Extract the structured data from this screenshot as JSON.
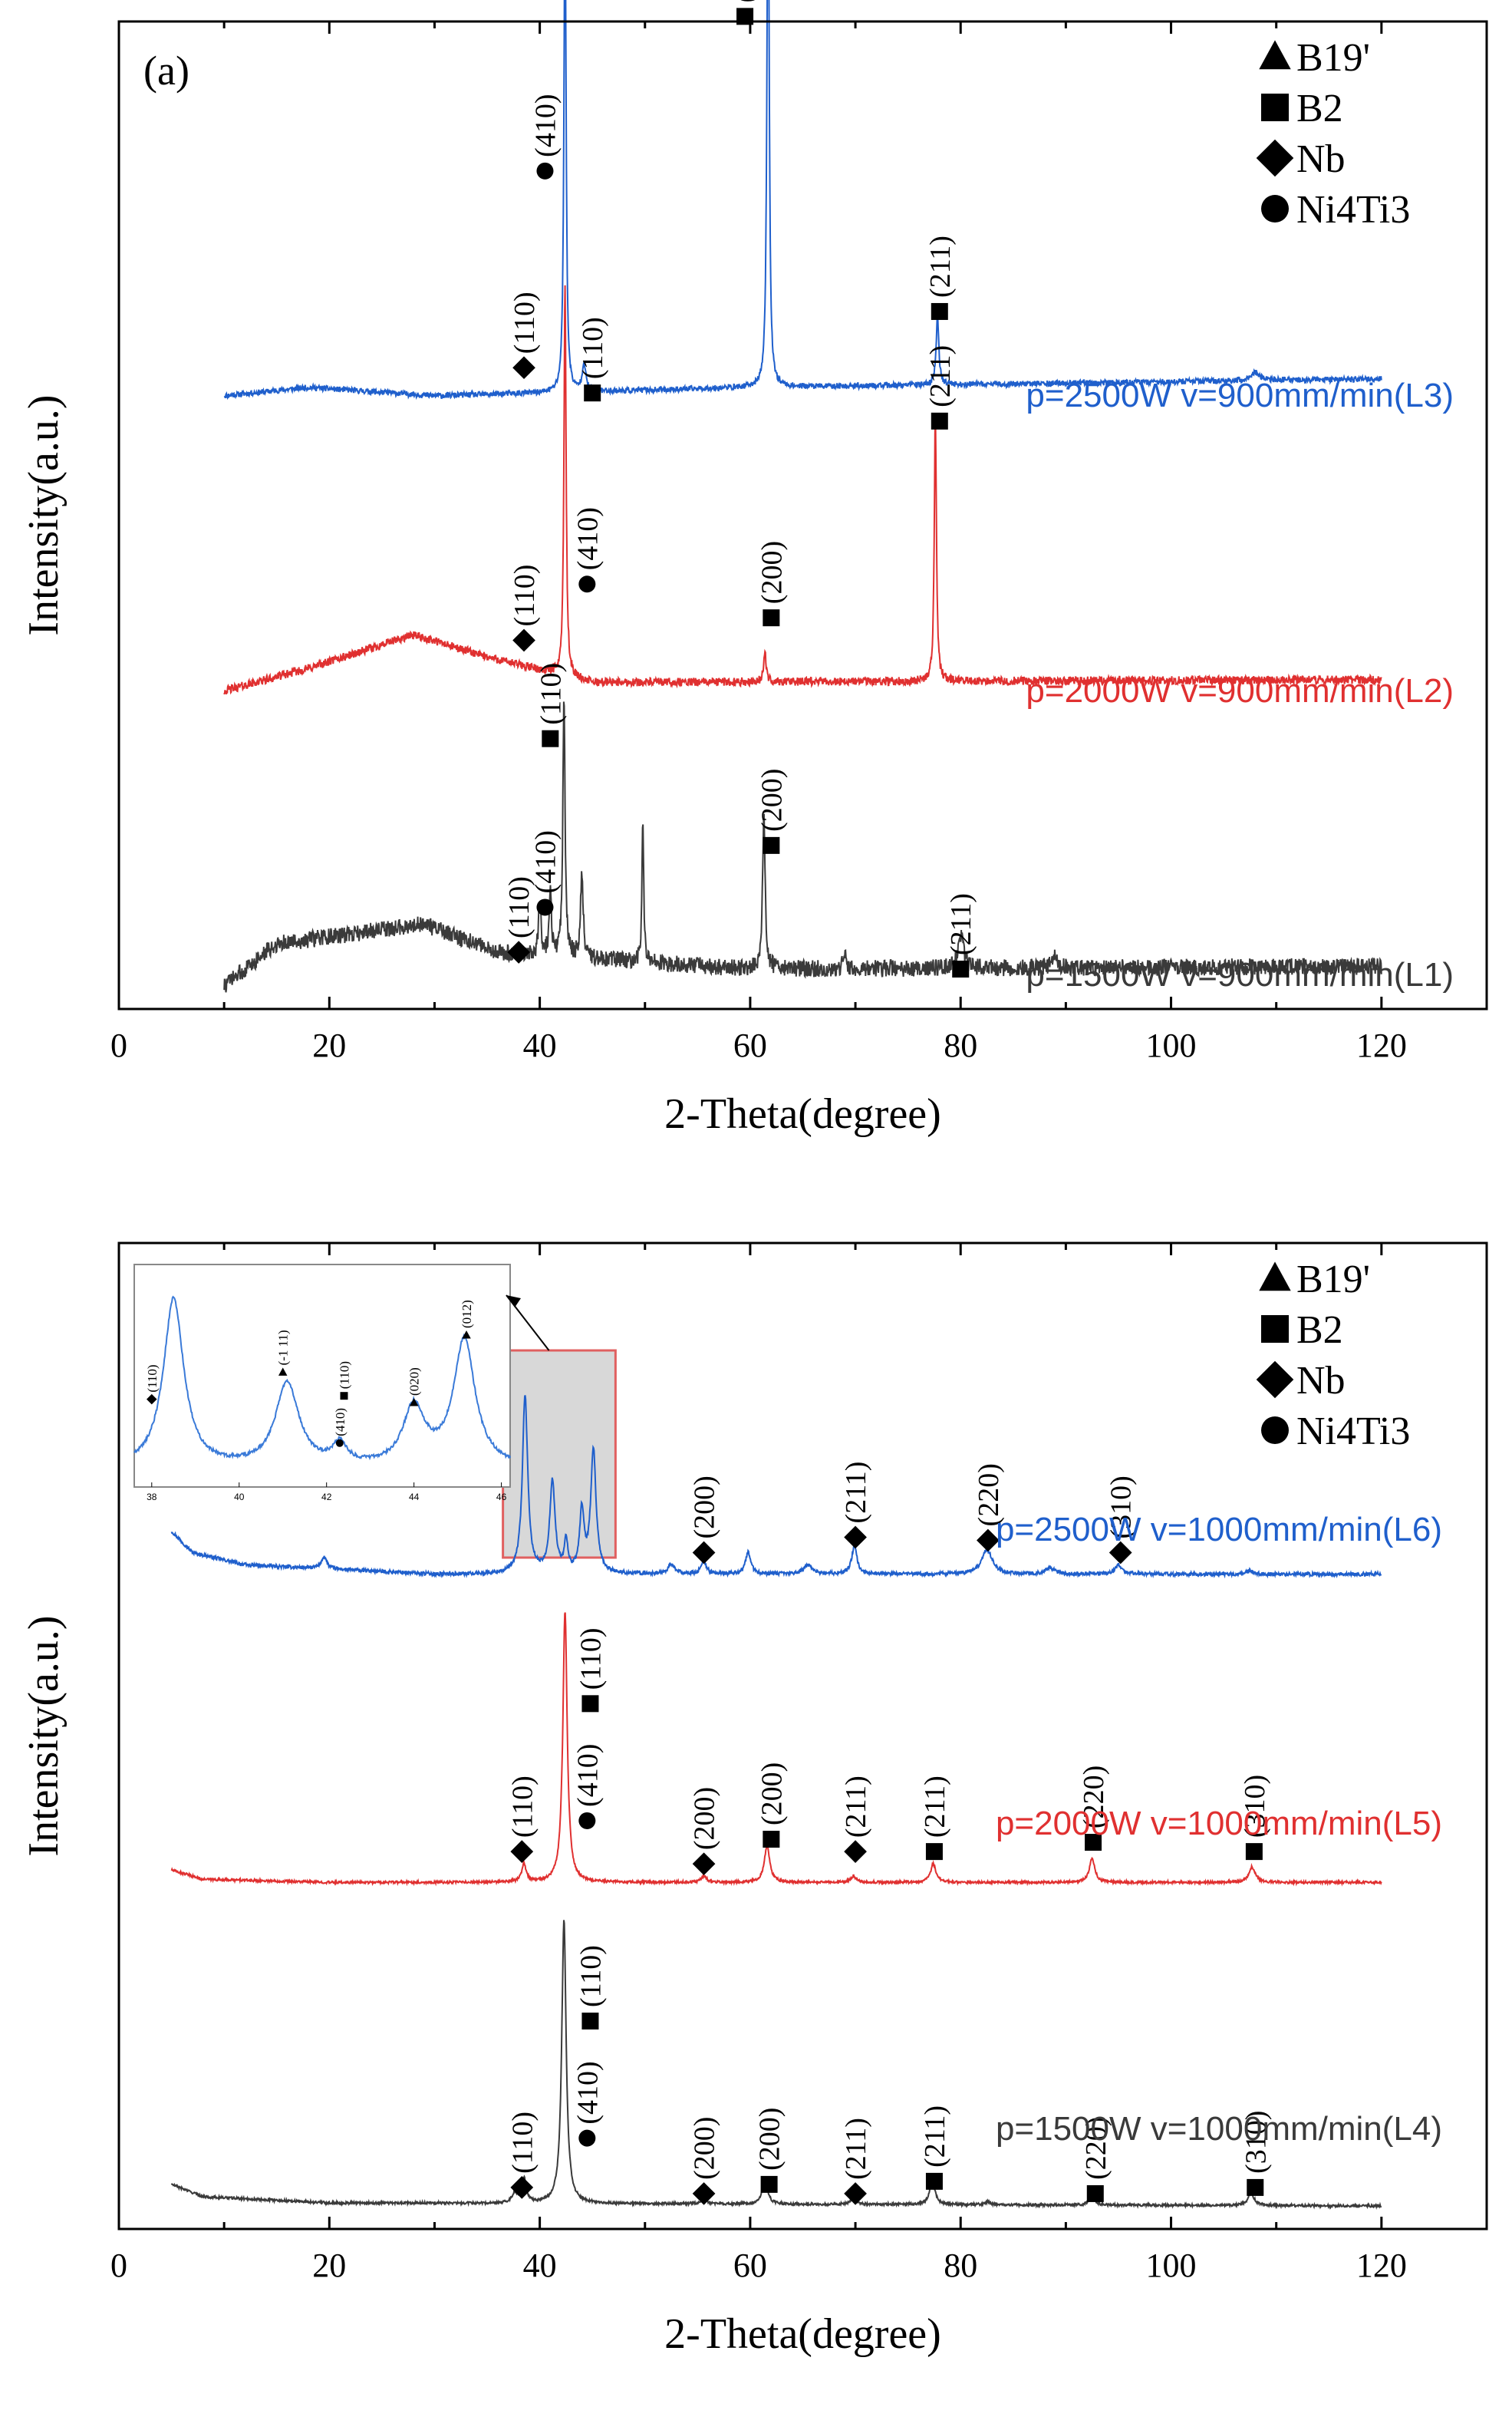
{
  "chart_data": [
    {
      "type": "line",
      "panel_label": "(a)",
      "xlabel": "2-Theta(degree)",
      "ylabel": "Intensity(a.u.)",
      "xlim": [
        0,
        130
      ],
      "xticks": [
        0,
        20,
        40,
        60,
        80,
        100,
        120
      ],
      "grid": false,
      "legend": {
        "placement": "top-right",
        "entries": [
          {
            "marker": "triangle",
            "label": "B19'"
          },
          {
            "marker": "square",
            "label": "B2"
          },
          {
            "marker": "diamond",
            "label": "Nb"
          },
          {
            "marker": "circle",
            "label": "Ni4Ti3"
          }
        ]
      },
      "series": [
        {
          "name": "p=2500W  v=900mm/min(L3)",
          "color": "#1f5fcc",
          "offset": 2.1,
          "x_range": [
            10,
            120
          ],
          "baseline": [
            [
              10,
              0
            ],
            [
              18,
              0.03
            ],
            [
              30,
              0.0
            ],
            [
              60,
              0.03
            ],
            [
              120,
              0.06
            ]
          ],
          "noise": 0.01,
          "peaks": [
            [
              42.4,
              1.8,
              0.12
            ],
            [
              44.2,
              0.1,
              0.2
            ],
            [
              61.7,
              2.1,
              0.12
            ],
            [
              77.8,
              0.25,
              0.15
            ],
            [
              108,
              0.03,
              0.5
            ]
          ],
          "annotations": [
            {
              "x": 38.5,
              "y": 0.1,
              "marker": "diamond",
              "label": "(110)"
            },
            {
              "x": 40.5,
              "y": 0.8,
              "marker": "circle",
              "label": "(410)"
            },
            {
              "x": 41.0,
              "y": 1.5,
              "marker": "square",
              "label": "(110)"
            },
            {
              "x": 59.5,
              "y": 1.35,
              "marker": "square",
              "label": "(200)"
            },
            {
              "x": 78.0,
              "y": 0.3,
              "marker": "square",
              "label": "(211)"
            }
          ]
        },
        {
          "name": "p=2000W  v=900mm/min(L2)",
          "color": "#e03030",
          "offset": 1.05,
          "x_range": [
            10,
            120
          ],
          "baseline": [
            [
              10,
              0
            ],
            [
              18,
              0.08
            ],
            [
              28,
              0.2
            ],
            [
              35,
              0.12
            ],
            [
              45,
              0.03
            ],
            [
              120,
              0.04
            ]
          ],
          "noise": 0.015,
          "peaks": [
            [
              42.4,
              1.4,
              0.12
            ],
            [
              61.4,
              0.1,
              0.15
            ],
            [
              77.6,
              0.95,
              0.12
            ]
          ],
          "annotations": [
            {
              "x": 38.5,
              "y": 0.18,
              "marker": "diamond",
              "label": "(110)"
            },
            {
              "x": 44.5,
              "y": 0.38,
              "marker": "circle",
              "label": "(410)"
            },
            {
              "x": 45.0,
              "y": 1.06,
              "marker": "square",
              "label": "(110)"
            },
            {
              "x": 62.0,
              "y": 0.26,
              "marker": "square",
              "label": "(200)"
            },
            {
              "x": 78.0,
              "y": 0.96,
              "marker": "square",
              "label": "(211)"
            }
          ]
        },
        {
          "name": "p=1500W  v=900mm/min(L1)",
          "color": "#3a3a3a",
          "offset": 0.0,
          "x_range": [
            10,
            120
          ],
          "baseline": [
            [
              10,
              0
            ],
            [
              15,
              0.15
            ],
            [
              29,
              0.22
            ],
            [
              36,
              0.12
            ],
            [
              60,
              0.06
            ],
            [
              120,
              0.07
            ]
          ],
          "noise": 0.03,
          "peaks": [
            [
              40.0,
              0.18,
              0.15
            ],
            [
              41.0,
              0.25,
              0.12
            ],
            [
              42.3,
              0.95,
              0.12
            ],
            [
              44.0,
              0.3,
              0.15
            ],
            [
              49.8,
              0.5,
              0.1
            ],
            [
              61.3,
              0.55,
              0.15
            ],
            [
              69.0,
              0.05,
              0.2
            ],
            [
              80.0,
              0.12,
              0.3
            ],
            [
              89.0,
              0.04,
              0.3
            ]
          ],
          "annotations": [
            {
              "x": 38.0,
              "y": 0.12,
              "marker": "diamond",
              "label": "(110)"
            },
            {
              "x": 40.5,
              "y": 0.28,
              "marker": "circle",
              "label": "(410)"
            },
            {
              "x": 41.0,
              "y": 0.88,
              "marker": "square",
              "label": "(110)"
            },
            {
              "x": 62.0,
              "y": 0.5,
              "marker": "square",
              "label": "(200)"
            },
            {
              "x": 80.0,
              "y": 0.06,
              "marker": "square",
              "label": "(211)"
            }
          ]
        }
      ]
    },
    {
      "type": "line",
      "panel_label": "(b)",
      "xlabel": "2-Theta(degree)",
      "ylabel": "Intensity(a.u.)",
      "xlim": [
        0,
        130
      ],
      "xticks": [
        0,
        20,
        40,
        60,
        80,
        100,
        120
      ],
      "grid": false,
      "legend": {
        "placement": "top-right",
        "entries": [
          {
            "marker": "triangle",
            "label": "B19'"
          },
          {
            "marker": "square",
            "label": "B2"
          },
          {
            "marker": "diamond",
            "label": "Nb"
          },
          {
            "marker": "circle",
            "label": "Ni4Ti3"
          }
        ]
      },
      "series": [
        {
          "name": "p=2500W  v=1000mm/min(L6)",
          "color": "#1f5fcc",
          "offset": 2.05,
          "x_range": [
            5,
            120
          ],
          "baseline": [
            [
              5,
              0.14
            ],
            [
              7,
              0.07
            ],
            [
              12,
              0.03
            ],
            [
              30,
              0.0
            ],
            [
              120,
              0.0
            ]
          ],
          "noise": 0.006,
          "peaks": [
            [
              19.5,
              0.04,
              0.3
            ],
            [
              38.6,
              0.58,
              0.3
            ],
            [
              41.2,
              0.3,
              0.3
            ],
            [
              42.5,
              0.1,
              0.2
            ],
            [
              44.0,
              0.2,
              0.25
            ],
            [
              45.1,
              0.4,
              0.3
            ],
            [
              52.5,
              0.03,
              0.4
            ],
            [
              55.6,
              0.04,
              0.3
            ],
            [
              59.8,
              0.07,
              0.3
            ],
            [
              65.5,
              0.03,
              0.5
            ],
            [
              69.9,
              0.09,
              0.3
            ],
            [
              82.5,
              0.08,
              0.6
            ],
            [
              88.5,
              0.02,
              0.5
            ],
            [
              95.0,
              0.03,
              0.4
            ],
            [
              107.5,
              0.01,
              0.4
            ]
          ],
          "annotations": [
            {
              "x": 55.6,
              "y": 0.07,
              "marker": "diamond",
              "label": "(200)"
            },
            {
              "x": 70.0,
              "y": 0.12,
              "marker": "diamond",
              "label": "(211)"
            },
            {
              "x": 82.6,
              "y": 0.11,
              "marker": "diamond",
              "label": "(220)"
            },
            {
              "x": 95.2,
              "y": 0.07,
              "marker": "diamond",
              "label": "(310)"
            }
          ]
        },
        {
          "name": "p=2000W  v=1000mm/min(L5)",
          "color": "#e03030",
          "offset": 1.05,
          "x_range": [
            5,
            120
          ],
          "baseline": [
            [
              5,
              0.04
            ],
            [
              8,
              0.01
            ],
            [
              20,
              0.0
            ],
            [
              120,
              0.0
            ]
          ],
          "noise": 0.004,
          "peaks": [
            [
              38.5,
              0.06,
              0.25
            ],
            [
              42.4,
              0.88,
              0.25
            ],
            [
              55.6,
              0.02,
              0.3
            ],
            [
              61.6,
              0.12,
              0.3
            ],
            [
              69.8,
              0.02,
              0.3
            ],
            [
              77.4,
              0.06,
              0.3
            ],
            [
              92.5,
              0.08,
              0.3
            ],
            [
              107.7,
              0.05,
              0.35
            ]
          ],
          "annotations": [
            {
              "x": 38.3,
              "y": 0.1,
              "marker": "diamond",
              "label": "(110)"
            },
            {
              "x": 44.5,
              "y": 0.2,
              "marker": "circle",
              "label": "(410)"
            },
            {
              "x": 44.8,
              "y": 0.58,
              "marker": "square",
              "label": "(110)"
            },
            {
              "x": 55.6,
              "y": 0.06,
              "marker": "diamond",
              "label": "(200)"
            },
            {
              "x": 62.0,
              "y": 0.14,
              "marker": "square",
              "label": "(200)"
            },
            {
              "x": 70.0,
              "y": 0.1,
              "marker": "diamond",
              "label": "(211)"
            },
            {
              "x": 77.5,
              "y": 0.1,
              "marker": "square",
              "label": "(211)"
            },
            {
              "x": 92.6,
              "y": 0.13,
              "marker": "square",
              "label": "(220)"
            },
            {
              "x": 107.9,
              "y": 0.1,
              "marker": "square",
              "label": "(310)"
            }
          ]
        },
        {
          "name": "p=1500W  v=1000mm/min(L4)",
          "color": "#3a3a3a",
          "offset": 0.0,
          "x_range": [
            5,
            120
          ],
          "baseline": [
            [
              5,
              0.07
            ],
            [
              8,
              0.03
            ],
            [
              20,
              0.01
            ],
            [
              120,
              0.0
            ]
          ],
          "noise": 0.004,
          "peaks": [
            [
              37.6,
              0.03,
              0.3
            ],
            [
              38.5,
              0.08,
              0.25
            ],
            [
              42.3,
              0.92,
              0.25
            ],
            [
              55.6,
              0.02,
              0.3
            ],
            [
              61.4,
              0.08,
              0.3
            ],
            [
              69.8,
              0.02,
              0.3
            ],
            [
              77.3,
              0.08,
              0.3
            ],
            [
              82.6,
              0.01,
              0.3
            ],
            [
              92.5,
              0.03,
              0.3
            ],
            [
              107.6,
              0.04,
              0.35
            ]
          ],
          "annotations": [
            {
              "x": 38.3,
              "y": 0.06,
              "marker": "diamond",
              "label": "(110)"
            },
            {
              "x": 44.5,
              "y": 0.22,
              "marker": "circle",
              "label": "(410)"
            },
            {
              "x": 44.8,
              "y": 0.6,
              "marker": "square",
              "label": "(110)"
            },
            {
              "x": 55.6,
              "y": 0.04,
              "marker": "diamond",
              "label": "(200)"
            },
            {
              "x": 61.8,
              "y": 0.07,
              "marker": "square",
              "label": "(200)"
            },
            {
              "x": 70.0,
              "y": 0.04,
              "marker": "diamond",
              "label": "(211)"
            },
            {
              "x": 77.5,
              "y": 0.08,
              "marker": "square",
              "label": "(211)"
            },
            {
              "x": 92.8,
              "y": 0.04,
              "marker": "square",
              "label": "(220)"
            },
            {
              "x": 108.0,
              "y": 0.06,
              "marker": "square",
              "label": "(310)"
            }
          ]
        }
      ],
      "highlight_region": {
        "x": [
          36.5,
          47.2
        ],
        "fill": "#d8d8d8",
        "stroke": "#e06060"
      },
      "inset": {
        "xlim": [
          37.6,
          46.2
        ],
        "xticks": [
          38,
          40,
          42,
          44,
          46
        ],
        "color": "#3a7ad8",
        "peaks": [
          [
            38.5,
            1.0,
            0.28
          ],
          [
            41.1,
            0.5,
            0.32
          ],
          [
            42.3,
            0.12,
            0.2
          ],
          [
            44.0,
            0.35,
            0.3
          ],
          [
            45.15,
            0.75,
            0.3
          ]
        ],
        "annotations": [
          {
            "x": 38.0,
            "y": 0.42,
            "marker": "diamond",
            "label": "(110)"
          },
          {
            "x": 41.0,
            "y": 0.58,
            "marker": "triangle",
            "label": "(-1 11)"
          },
          {
            "x": 42.3,
            "y": 0.16,
            "marker": "circle",
            "label": "(410)"
          },
          {
            "x": 42.4,
            "y": 0.44,
            "marker": "square",
            "label": "(110)"
          },
          {
            "x": 44.0,
            "y": 0.4,
            "marker": "triangle",
            "label": "(020)"
          },
          {
            "x": 45.2,
            "y": 0.8,
            "marker": "triangle",
            "label": "(012)"
          }
        ]
      }
    }
  ]
}
